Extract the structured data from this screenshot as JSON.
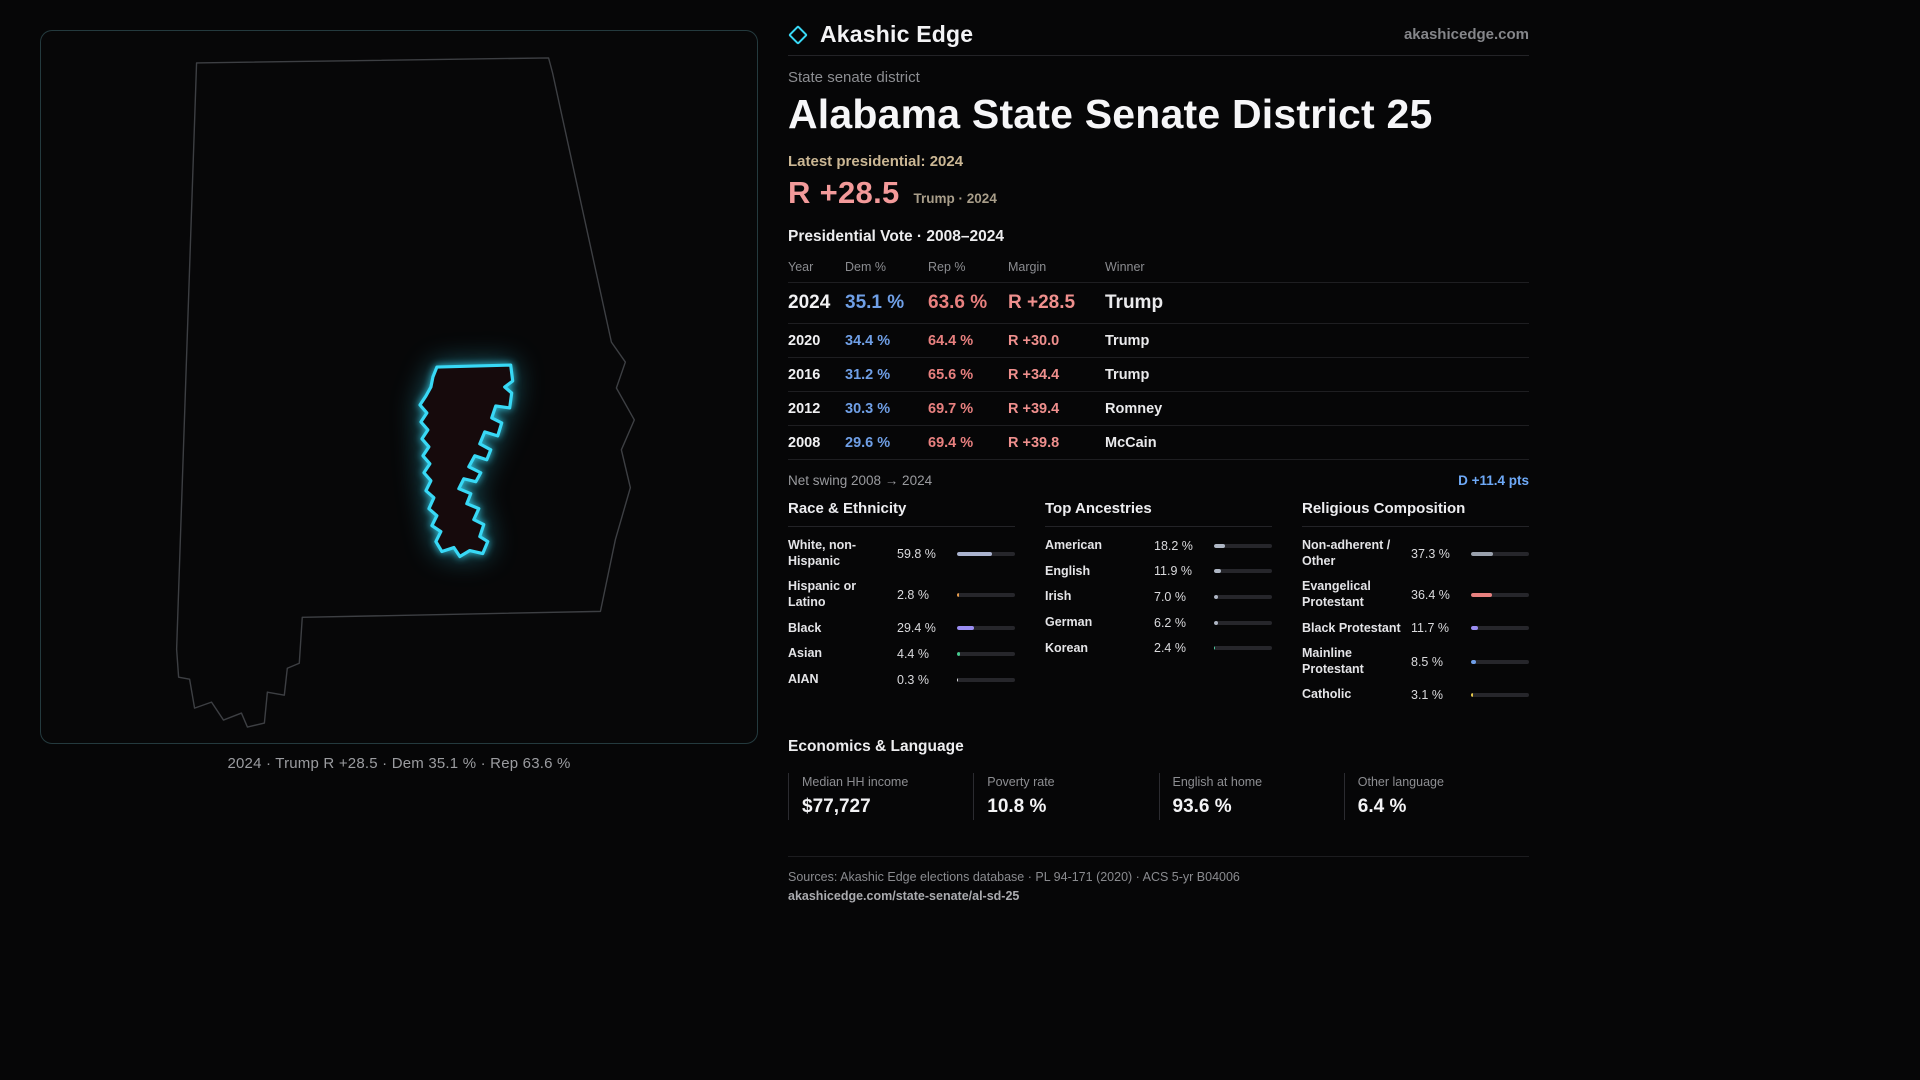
{
  "brand": {
    "name": "Akashic Edge",
    "domain": "akashicedge.com"
  },
  "map": {
    "caption": "2024 · Trump R +28.5 · Dem 35.1 % · Rep 63.6 %"
  },
  "page": {
    "kicker": "State senate district",
    "title": "Alabama State Senate District 25",
    "latest_label": "Latest presidential: 2024",
    "headline_margin": "R +28.5",
    "headline_sub": "Trump · 2024"
  },
  "colors": {
    "accent_cyan": "#38d9f6",
    "dem_blue": "#6f9fe6",
    "rep_red": "#e8807f",
    "margin_pink": "#ef8f8d",
    "swing_blue": "#6ea9f7"
  },
  "vote_table": {
    "title": "Presidential Vote · 2008–2024",
    "headers": [
      "Year",
      "Dem %",
      "Rep %",
      "Margin",
      "Winner"
    ],
    "rows": [
      {
        "year": "2024",
        "dem": "35.1 %",
        "rep": "63.6 %",
        "margin": "R +28.5",
        "winner": "Trump"
      },
      {
        "year": "2020",
        "dem": "34.4 %",
        "rep": "64.4 %",
        "margin": "R +30.0",
        "winner": "Trump"
      },
      {
        "year": "2016",
        "dem": "31.2 %",
        "rep": "65.6 %",
        "margin": "R +34.4",
        "winner": "Trump"
      },
      {
        "year": "2012",
        "dem": "30.3 %",
        "rep": "69.7 %",
        "margin": "R +39.4",
        "winner": "Romney"
      },
      {
        "year": "2008",
        "dem": "29.6 %",
        "rep": "69.4 %",
        "margin": "R +39.8",
        "winner": "McCain"
      }
    ]
  },
  "net_swing": {
    "label": "Net swing 2008 → 2024",
    "value": "D +11.4 pts"
  },
  "demographics": {
    "race": {
      "title": "Race & Ethnicity",
      "items": [
        {
          "label": "White, non-Hispanic",
          "value": "59.8 %",
          "pct": 59.8,
          "color": "#aab3cf"
        },
        {
          "label": "Hispanic or Latino",
          "value": "2.8 %",
          "pct": 2.8,
          "color": "#e69b4a"
        },
        {
          "label": "Black",
          "value": "29.4 %",
          "pct": 29.4,
          "color": "#9a8df2"
        },
        {
          "label": "Asian",
          "value": "4.4 %",
          "pct": 4.4,
          "color": "#46c98e"
        },
        {
          "label": "AIAN",
          "value": "0.3 %",
          "pct": 0.3,
          "color": "#d8d8db"
        }
      ]
    },
    "ancestry": {
      "title": "Top Ancestries",
      "items": [
        {
          "label": "American",
          "value": "18.2 %",
          "pct": 18.2,
          "color": "#aeb6c4"
        },
        {
          "label": "English",
          "value": "11.9 %",
          "pct": 11.9,
          "color": "#aeb6c4"
        },
        {
          "label": "Irish",
          "value": "7.0 %",
          "pct": 7.0,
          "color": "#aeb6c4"
        },
        {
          "label": "German",
          "value": "6.2 %",
          "pct": 6.2,
          "color": "#aeb6c4"
        },
        {
          "label": "Korean",
          "value": "2.4 %",
          "pct": 2.4,
          "color": "#4fc9a0"
        }
      ]
    },
    "religion": {
      "title": "Religious Composition",
      "items": [
        {
          "label": "Non-adherent / Other",
          "value": "37.3 %",
          "pct": 37.3,
          "color": "#9aa1ad"
        },
        {
          "label": "Evangelical Protestant",
          "value": "36.4 %",
          "pct": 36.4,
          "color": "#e8807f"
        },
        {
          "label": "Black Protestant",
          "value": "11.7 %",
          "pct": 11.7,
          "color": "#9a8df2"
        },
        {
          "label": "Mainline Protestant",
          "value": "8.5 %",
          "pct": 8.5,
          "color": "#6f9ee8"
        },
        {
          "label": "Catholic",
          "value": "3.1 %",
          "pct": 3.1,
          "color": "#e6c84a"
        }
      ]
    }
  },
  "economics": {
    "title": "Economics & Language",
    "stats": [
      {
        "label": "Median HH income",
        "value": "$77,727"
      },
      {
        "label": "Poverty rate",
        "value": "10.8 %"
      },
      {
        "label": "English at home",
        "value": "93.6 %"
      },
      {
        "label": "Other language",
        "value": "6.4 %"
      }
    ]
  },
  "footer": {
    "sources": "Sources: Akashic Edge elections database · PL 94-171 (2020) · ACS 5-yr B04006",
    "url": "akashicedge.com/state-senate/al-sd-25"
  }
}
